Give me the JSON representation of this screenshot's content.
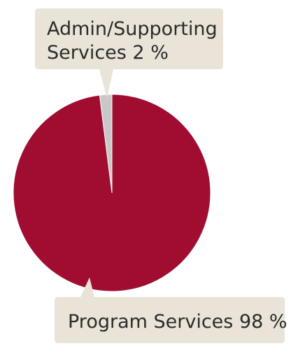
{
  "chart_data": {
    "type": "pie",
    "slices": [
      {
        "label_lines": [
          "Admin/Supporting",
          "Services 2 %"
        ],
        "value": 2,
        "color": "#c8c8c8"
      },
      {
        "label_lines": [
          "Program Services 98 %"
        ],
        "value": 98,
        "color": "#a00d30"
      }
    ],
    "callout_color": "#e9e4d7"
  }
}
